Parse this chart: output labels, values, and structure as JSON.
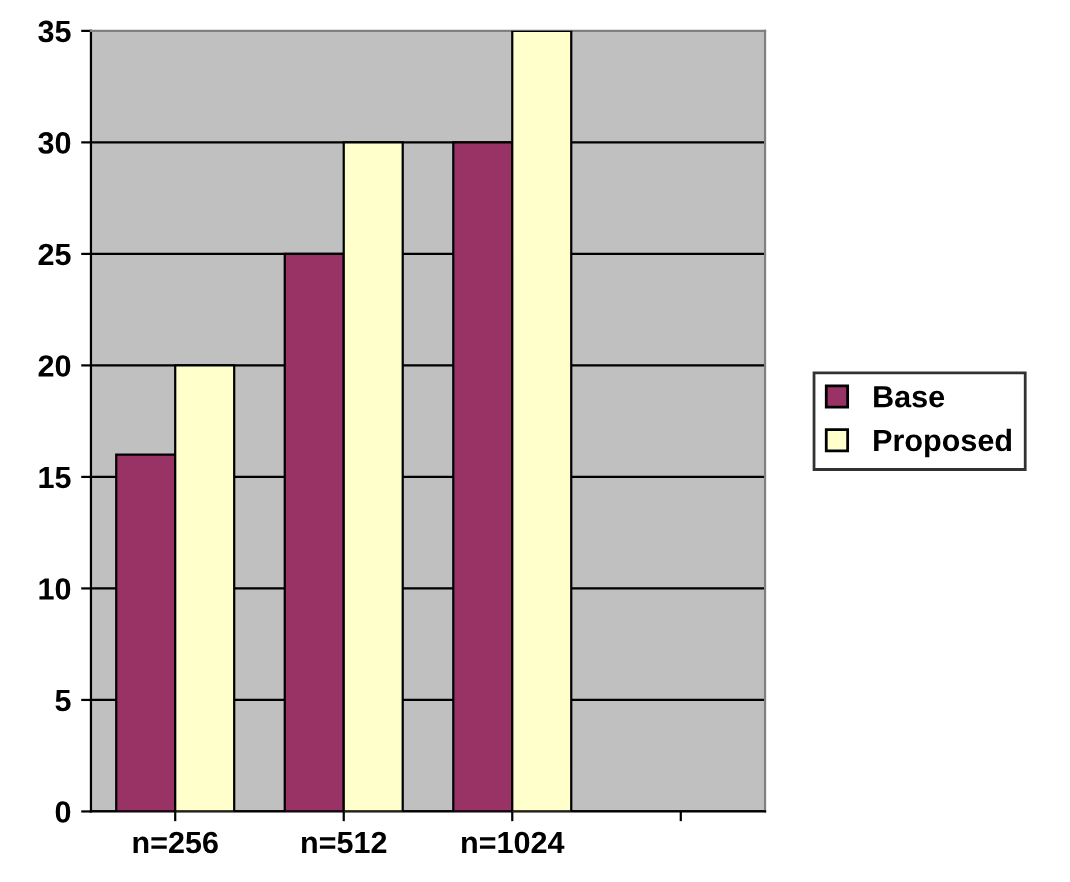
{
  "chart_data": {
    "type": "bar",
    "categories": [
      "n=256",
      "n=512",
      "n=1024",
      null
    ],
    "series": [
      {
        "name": "Base",
        "color": "#993366",
        "values": [
          16,
          25,
          30,
          null
        ]
      },
      {
        "name": "Proposed",
        "color": "#ffffcc",
        "values": [
          20,
          30,
          35,
          null
        ]
      }
    ],
    "ylim": [
      0,
      35
    ],
    "yticks": [
      0,
      5,
      10,
      15,
      20,
      25,
      30,
      35
    ],
    "grid": "y",
    "legend": "right"
  }
}
